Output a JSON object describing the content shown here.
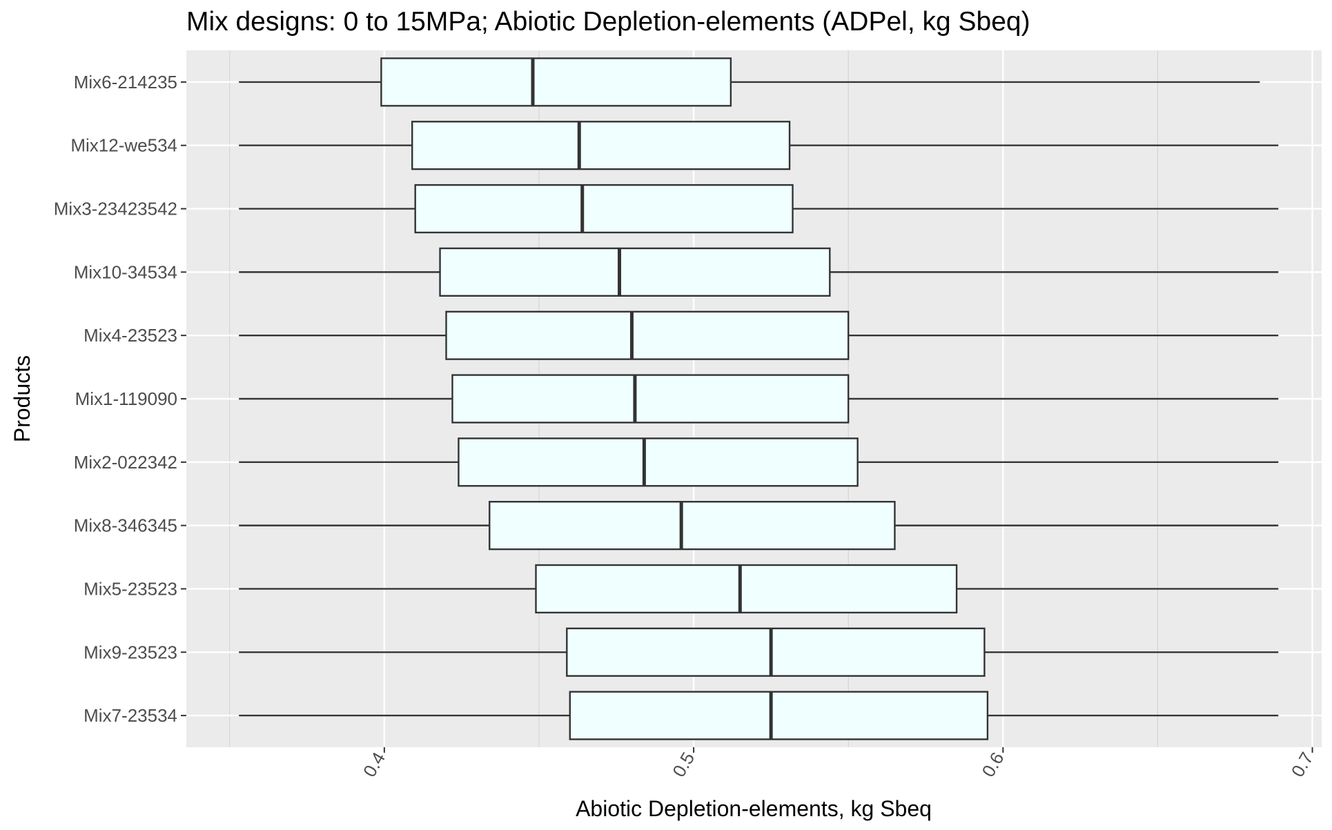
{
  "chart_data": {
    "type": "boxplot",
    "orientation": "horizontal",
    "title": "Mix designs: 0 to 15MPa; Abiotic Depletion-elements (ADPel, kg Sbeq)",
    "xlabel": "Abiotic Depletion-elements, kg Sbeq",
    "ylabel": "Products",
    "xlim": [
      0.336,
      0.703
    ],
    "x_ticks": [
      "0.4",
      "0.5",
      "0.6",
      "0.7"
    ],
    "x_tick_values": [
      0.4,
      0.5,
      0.6,
      0.7
    ],
    "x_minor_gridlines": [
      0.35,
      0.45,
      0.55,
      0.65
    ],
    "x_tick_label_rotation_deg": -60,
    "grid": true,
    "box_fill": "#F0FFFF",
    "box_stroke": "#333333",
    "panel_background": "#EBEBEB",
    "categories": [
      "Mix6-214235",
      "Mix12-we534",
      "Mix3-23423542",
      "Mix10-34534",
      "Mix4-23523",
      "Mix1-119090",
      "Mix2-022342",
      "Mix8-346345",
      "Mix5-23523",
      "Mix9-23523",
      "Mix7-23534"
    ],
    "boxes": [
      {
        "name": "Mix6-214235",
        "min": 0.353,
        "q1": 0.399,
        "median": 0.448,
        "q3": 0.512,
        "max": 0.683
      },
      {
        "name": "Mix12-we534",
        "min": 0.353,
        "q1": 0.409,
        "median": 0.463,
        "q3": 0.531,
        "max": 0.689
      },
      {
        "name": "Mix3-23423542",
        "min": 0.353,
        "q1": 0.41,
        "median": 0.464,
        "q3": 0.532,
        "max": 0.689
      },
      {
        "name": "Mix10-34534",
        "min": 0.353,
        "q1": 0.418,
        "median": 0.476,
        "q3": 0.544,
        "max": 0.689
      },
      {
        "name": "Mix4-23523",
        "min": 0.353,
        "q1": 0.42,
        "median": 0.48,
        "q3": 0.55,
        "max": 0.689
      },
      {
        "name": "Mix1-119090",
        "min": 0.353,
        "q1": 0.422,
        "median": 0.481,
        "q3": 0.55,
        "max": 0.689
      },
      {
        "name": "Mix2-022342",
        "min": 0.353,
        "q1": 0.424,
        "median": 0.484,
        "q3": 0.553,
        "max": 0.689
      },
      {
        "name": "Mix8-346345",
        "min": 0.353,
        "q1": 0.434,
        "median": 0.496,
        "q3": 0.565,
        "max": 0.689
      },
      {
        "name": "Mix5-23523",
        "min": 0.353,
        "q1": 0.449,
        "median": 0.515,
        "q3": 0.585,
        "max": 0.689
      },
      {
        "name": "Mix9-23523",
        "min": 0.353,
        "q1": 0.459,
        "median": 0.525,
        "q3": 0.594,
        "max": 0.689
      },
      {
        "name": "Mix7-23534",
        "min": 0.353,
        "q1": 0.46,
        "median": 0.525,
        "q3": 0.595,
        "max": 0.689
      }
    ]
  }
}
